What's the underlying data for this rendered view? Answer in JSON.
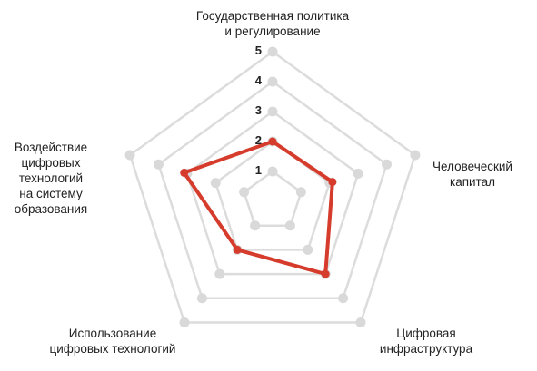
{
  "chart_data": {
    "type": "radar",
    "title": "",
    "scale": {
      "min": 0,
      "max": 5,
      "ticks": [
        "1",
        "2",
        "3",
        "4",
        "5"
      ]
    },
    "axes": [
      {
        "label_lines": [
          "Государственная политика",
          "и регулирование"
        ]
      },
      {
        "label_lines": [
          "Человеческий",
          "капитал"
        ]
      },
      {
        "label_lines": [
          "Цифровая",
          "инфраструктура"
        ]
      },
      {
        "label_lines": [
          "Использование",
          "цифровых технологий"
        ]
      },
      {
        "label_lines": [
          "Воздействие",
          "цифровых",
          "технологий",
          "на систему",
          "образования"
        ]
      }
    ],
    "series": [
      {
        "values": [
          2.0,
          2.1,
          3.0,
          2.0,
          3.1
        ]
      }
    ],
    "colors": {
      "series": "#d63c2c",
      "grid": "#dcdcdc",
      "grid_vertex": "#d9d9d9"
    }
  }
}
